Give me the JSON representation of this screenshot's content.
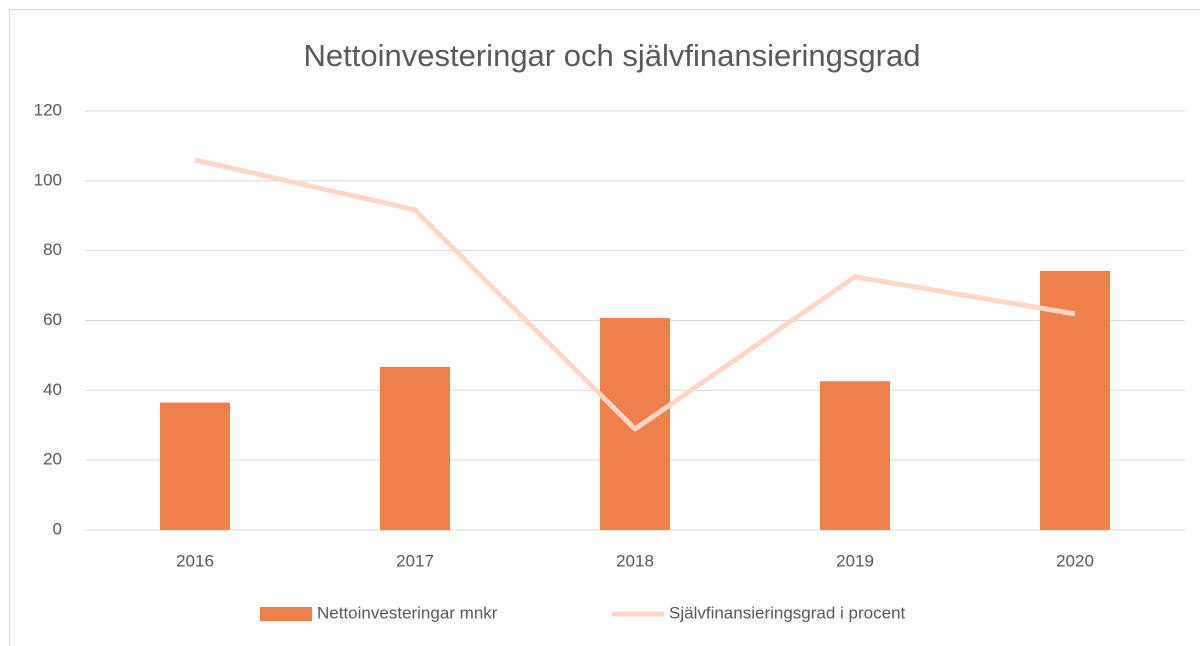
{
  "chart_data": {
    "type": "bar",
    "title": "Nettoinvesteringar och självfinansieringsgrad",
    "categories": [
      "2016",
      "2017",
      "2018",
      "2019",
      "2020"
    ],
    "series": [
      {
        "name": "Nettoinvesteringar mnkr",
        "type": "bar",
        "color": "#ef7f4d",
        "values": [
          36.5,
          46.7,
          60.7,
          42.6,
          74.2
        ]
      },
      {
        "name": "Självfinansieringsgrad i procent",
        "type": "line",
        "color": "#fcd7c8",
        "values": [
          106,
          91.7,
          28.9,
          72.5,
          61.9
        ]
      }
    ],
    "ylim": [
      0,
      120
    ],
    "yticks": [
      0,
      20,
      40,
      60,
      80,
      100,
      120
    ],
    "grid": true,
    "legend": "bottom"
  }
}
